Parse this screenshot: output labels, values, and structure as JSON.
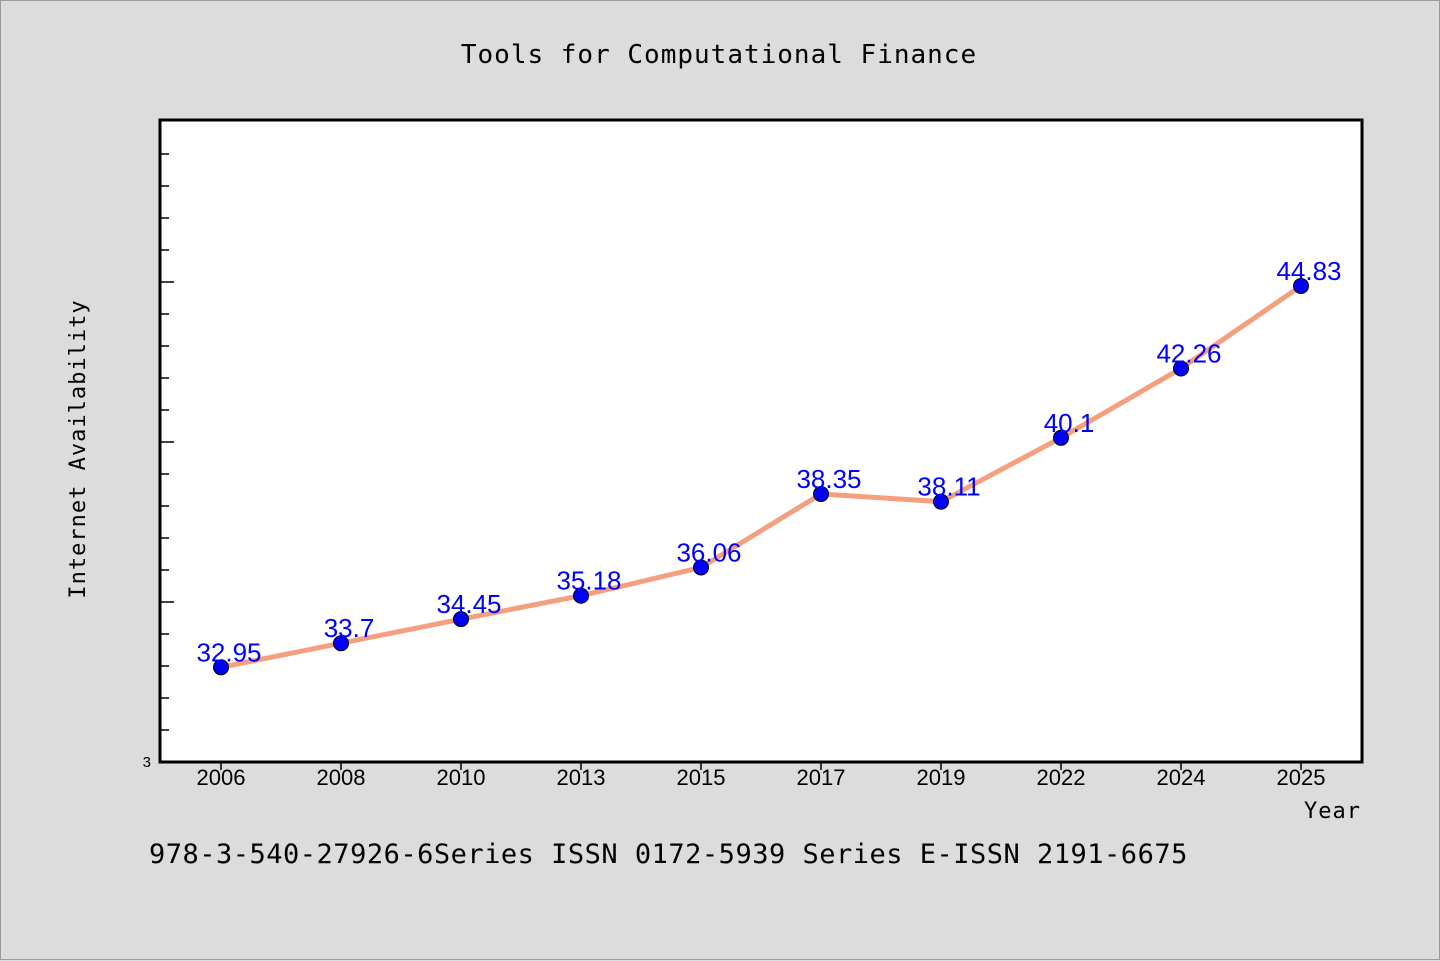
{
  "chart_data": {
    "type": "line",
    "title": "Tools for Computational Finance",
    "xlabel": "Year",
    "ylabel": "Internet Availability",
    "categories": [
      "2006",
      "2008",
      "2010",
      "2013",
      "2015",
      "2017",
      "2019",
      "2022",
      "2024",
      "2025"
    ],
    "series": [
      {
        "values": [
          32.95,
          33.7,
          34.45,
          35.18,
          36.06,
          38.35,
          38.11,
          40.1,
          42.26,
          44.83
        ],
        "labels": [
          "32.95",
          "33.7",
          "34.45",
          "35.18",
          "36.06",
          "38.35",
          "38.11",
          "40.1",
          "42.26",
          "44.83"
        ],
        "line_color": "#f4a07f",
        "marker_color": "#0000ff"
      }
    ],
    "yaxis_visible_tick_label": "3",
    "ylim": [
      30,
      50
    ],
    "grid": false,
    "legend": "none"
  },
  "footer": {
    "text": "978-3-540-27926-6Series ISSN 0172-5939 Series E-ISSN 2191-6675"
  },
  "colors": {
    "background": "#dcdcdc",
    "plot_background": "#ffffff",
    "line": "#f4a07f",
    "marker": "#0000ff",
    "data_label": "#0000ff"
  }
}
